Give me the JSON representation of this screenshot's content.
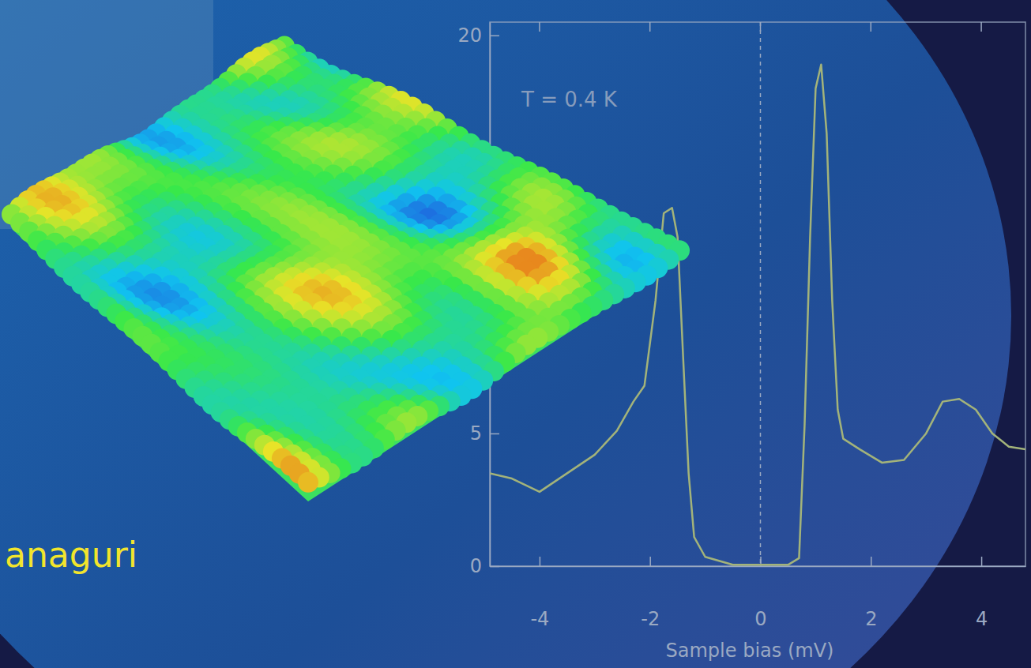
{
  "chart_data": {
    "type": "line",
    "annotations": [
      "T = 0.4 K",
      "anaguri"
    ],
    "x_label": "Sample bias (mV)",
    "x": [
      -4.9,
      -4.5,
      -4.0,
      -3.5,
      -3.0,
      -2.6,
      -2.3,
      -2.1,
      -1.9,
      -1.75,
      -1.6,
      -1.5,
      -1.4,
      -1.3,
      -1.2,
      -1.0,
      -0.5,
      0.0,
      0.5,
      0.7,
      0.8,
      0.9,
      1.0,
      1.1,
      1.2,
      1.3,
      1.4,
      1.5,
      1.8,
      2.2,
      2.6,
      3.0,
      3.3,
      3.6,
      3.9,
      4.2,
      4.5,
      4.8
    ],
    "series": [
      {
        "color": "#a3b37a",
        "values": [
          3.5,
          3.3,
          2.8,
          3.5,
          4.2,
          5.1,
          6.2,
          6.8,
          10.0,
          13.3,
          13.5,
          12.4,
          7.9,
          3.5,
          1.1,
          0.35,
          0.05,
          0.05,
          0.05,
          0.3,
          5.3,
          12.4,
          18.0,
          18.9,
          16.3,
          10.0,
          5.9,
          4.8,
          4.4,
          3.9,
          4.0,
          5.0,
          6.2,
          6.3,
          5.9,
          5.0,
          4.5,
          4.4
        ]
      }
    ],
    "xlim": [
      -4.9,
      4.8
    ],
    "xticks": [
      -4,
      -2,
      0,
      2,
      4
    ],
    "ylim": [
      0,
      20.5
    ],
    "yticks": [
      0,
      5,
      20
    ]
  }
}
